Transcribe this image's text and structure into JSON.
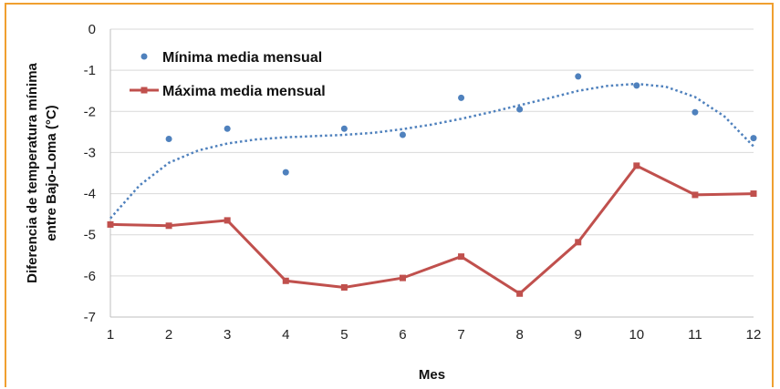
{
  "chart_data": {
    "type": "line",
    "xlabel": "Mes",
    "ylabel": [
      "Diferencia de temperatura mínima",
      "entre Bajo-Loma (°C)"
    ],
    "xlim": [
      1,
      12
    ],
    "ylim": [
      -7,
      0
    ],
    "x_ticks": [
      1,
      2,
      3,
      4,
      5,
      6,
      7,
      8,
      9,
      10,
      11,
      12
    ],
    "y_ticks": [
      0,
      -1,
      -2,
      -3,
      -4,
      -5,
      -6,
      -7
    ],
    "grid": true,
    "legend_position": "top-left",
    "series": [
      {
        "name": "Mínima media mensual",
        "style": "scatter",
        "color": "#4f81bd",
        "x": [
          1,
          2,
          3,
          4,
          5,
          6,
          7,
          8,
          9,
          10,
          11,
          12
        ],
        "values": [
          -4.75,
          -2.67,
          -2.42,
          -3.48,
          -2.42,
          -2.57,
          -1.67,
          -1.95,
          -1.15,
          -1.37,
          -2.02,
          -2.65
        ]
      },
      {
        "name": "Máxima media mensual",
        "style": "line-markers",
        "color": "#c0504d",
        "x": [
          1,
          2,
          3,
          4,
          5,
          6,
          7,
          8,
          9,
          10,
          11,
          12
        ],
        "values": [
          -4.75,
          -4.78,
          -4.65,
          -6.12,
          -6.28,
          -6.05,
          -5.53,
          -6.43,
          -5.18,
          -3.32,
          -4.03,
          -4.0
        ]
      }
    ],
    "trendline": {
      "type": "polynomial",
      "color": "#4f81bd",
      "style": "dotted",
      "x": [
        1,
        1.5,
        2,
        2.5,
        3,
        3.5,
        4,
        4.5,
        5,
        5.5,
        6,
        6.5,
        7,
        7.5,
        8,
        8.5,
        9,
        9.5,
        10,
        10.5,
        11,
        11.5,
        12
      ],
      "values": [
        -4.6,
        -3.8,
        -3.25,
        -2.95,
        -2.78,
        -2.68,
        -2.63,
        -2.6,
        -2.57,
        -2.52,
        -2.43,
        -2.32,
        -2.18,
        -2.02,
        -1.85,
        -1.68,
        -1.5,
        -1.38,
        -1.33,
        -1.4,
        -1.65,
        -2.12,
        -2.85
      ]
    }
  }
}
